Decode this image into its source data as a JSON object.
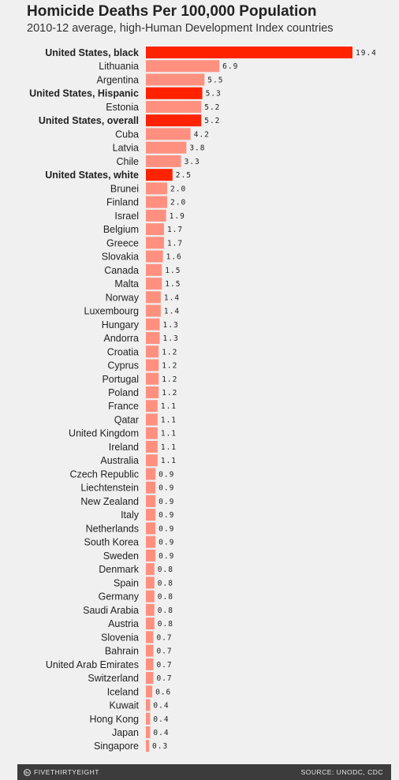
{
  "header": {
    "title": "Homicide Deaths Per 100,000 Population",
    "subtitle": "2010-12 average, high-Human Development Index countries"
  },
  "footer": {
    "brand": "FIVETHIRTYEIGHT",
    "brand_icon": "fivethirtyeight-logo-icon",
    "source": "SOURCE: UNODC, CDC"
  },
  "colors": {
    "highlight": "#ff2200",
    "bar": "#ff9080",
    "background": "#f0f0f0",
    "footer": "#3c3c3c"
  },
  "chart_data": {
    "type": "bar",
    "orientation": "horizontal",
    "title": "Homicide Deaths Per 100,000 Population",
    "subtitle": "2010-12 average, high-Human Development Index countries",
    "categories": [
      "United States, black",
      "Lithuania",
      "Argentina",
      "United States, Hispanic",
      "Estonia",
      "United States, overall",
      "Cuba",
      "Latvia",
      "Chile",
      "United States, white",
      "Brunei",
      "Finland",
      "Israel",
      "Belgium",
      "Greece",
      "Slovakia",
      "Canada",
      "Malta",
      "Norway",
      "Luxembourg",
      "Hungary",
      "Andorra",
      "Croatia",
      "Cyprus",
      "Portugal",
      "Poland",
      "France",
      "Qatar",
      "United Kingdom",
      "Ireland",
      "Australia",
      "Czech Republic",
      "Liechtenstein",
      "New Zealand",
      "Italy",
      "Netherlands",
      "South Korea",
      "Sweden",
      "Denmark",
      "Spain",
      "Germany",
      "Saudi Arabia",
      "Austria",
      "Slovenia",
      "Bahrain",
      "United Arab Emirates",
      "Switzerland",
      "Iceland",
      "Kuwait",
      "Hong Kong",
      "Japan",
      "Singapore"
    ],
    "values": [
      19.4,
      6.9,
      5.5,
      5.3,
      5.2,
      5.2,
      4.2,
      3.8,
      3.3,
      2.5,
      2.0,
      2.0,
      1.9,
      1.7,
      1.7,
      1.6,
      1.5,
      1.5,
      1.4,
      1.4,
      1.3,
      1.3,
      1.2,
      1.2,
      1.2,
      1.2,
      1.1,
      1.1,
      1.1,
      1.1,
      1.1,
      0.9,
      0.9,
      0.9,
      0.9,
      0.9,
      0.9,
      0.9,
      0.8,
      0.8,
      0.8,
      0.8,
      0.8,
      0.7,
      0.7,
      0.7,
      0.7,
      0.6,
      0.4,
      0.4,
      0.4,
      0.3
    ],
    "value_labels": [
      "19.4",
      "6.9",
      "5.5",
      "5.3",
      "5.2",
      "5.2",
      "4.2",
      "3.8",
      "3.3",
      "2.5",
      "2.0",
      "2.0",
      "1.9",
      "1.7",
      "1.7",
      "1.6",
      "1.5",
      "1.5",
      "1.4",
      "1.4",
      "1.3",
      "1.3",
      "1.2",
      "1.2",
      "1.2",
      "1.2",
      "1.1",
      "1.1",
      "1.1",
      "1.1",
      "1.1",
      "0.9",
      "0.9",
      "0.9",
      "0.9",
      "0.9",
      "0.9",
      "0.9",
      "0.8",
      "0.8",
      "0.8",
      "0.8",
      "0.8",
      "0.7",
      "0.7",
      "0.7",
      "0.7",
      "0.6",
      "0.4",
      "0.4",
      "0.4",
      "0.3"
    ],
    "highlighted": [
      "United States, black",
      "United States, Hispanic",
      "United States, overall",
      "United States, white"
    ],
    "xlim": [
      0,
      19.4
    ],
    "grid": false,
    "xlabel": "",
    "ylabel": ""
  }
}
